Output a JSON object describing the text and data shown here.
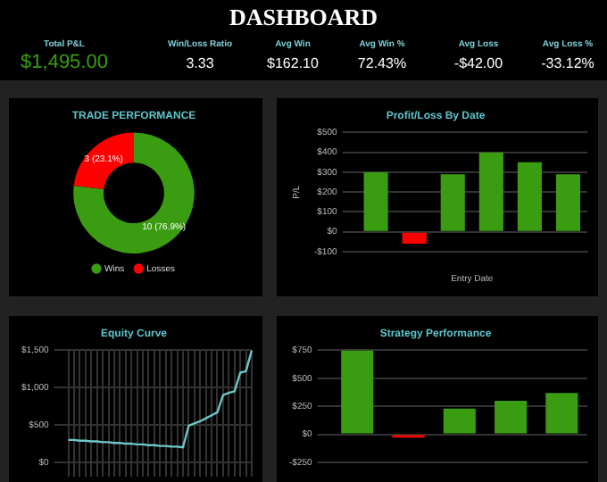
{
  "chart_data": [
    {
      "type": "other",
      "title": "DASHBOARD",
      "annotations": [
        "Total P&L",
        "$1,495.00",
        "Win/Loss Ratio",
        "3.33",
        "Avg Win",
        "$162.10",
        "Avg Win %",
        "72.43%",
        "Avg Loss",
        "-$42.00",
        "Avg Loss %",
        "-33.12%"
      ]
    },
    {
      "type": "donut",
      "title": "TRADE PERFORMANCE",
      "categories": [
        "Wins",
        "Losses"
      ],
      "values": [
        10,
        3
      ],
      "colors": [
        "#3a9c10",
        "#ff0000"
      ],
      "value_labels": [
        "10 (76.9%)",
        "3 (23.1%)"
      ],
      "legend": "bottom"
    },
    {
      "type": "bar",
      "title": "Profit/Loss By Date",
      "xlabel": "Entry Date",
      "ylabel": "P/L",
      "categories": [
        null,
        null,
        null,
        null,
        null,
        null
      ],
      "values": [
        300,
        -60,
        290,
        400,
        350,
        290
      ],
      "colors": [
        "#3a9c10",
        "#ff0000",
        "#3a9c10",
        "#3a9c10",
        "#3a9c10",
        "#3a9c10"
      ],
      "ylim": [
        -100,
        500
      ],
      "yticks": [
        {
          "value": -100,
          "label": "-$100"
        },
        {
          "value": 0,
          "label": "$0"
        },
        {
          "value": 100,
          "label": "$100"
        },
        {
          "value": 200,
          "label": "$200"
        },
        {
          "value": 300,
          "label": "$300"
        },
        {
          "value": 400,
          "label": "$400"
        },
        {
          "value": 500,
          "label": "$500"
        }
      ],
      "grid": "y",
      "tick_labels": "y"
    },
    {
      "type": "line",
      "title": "Equity Curve",
      "categories": [
        null,
        null,
        null,
        null,
        null,
        null,
        null,
        null,
        null,
        null,
        null,
        null,
        null,
        null,
        null,
        null,
        null,
        null,
        null,
        null,
        null,
        null,
        null,
        null,
        null,
        null,
        null,
        null,
        null,
        null,
        null,
        null,
        null
      ],
      "series": [
        {
          "color": "#6fc7c9",
          "values": [
            300,
            300,
            290,
            290,
            280,
            280,
            270,
            270,
            260,
            260,
            250,
            250,
            240,
            240,
            230,
            230,
            220,
            220,
            210,
            210,
            200,
            490,
            520,
            550,
            590,
            630,
            670,
            900,
            930,
            950,
            1200,
            1220,
            1500
          ]
        }
      ],
      "ylim": [
        0,
        1500
      ],
      "yticks": [
        {
          "value": 0,
          "label": "$0"
        },
        {
          "value": 500,
          "label": "$500"
        },
        {
          "value": 1000,
          "label": "$1,000"
        },
        {
          "value": 1500,
          "label": "$1,500"
        }
      ],
      "grid": true,
      "tick_labels": "y",
      "marker": "none"
    },
    {
      "type": "bar",
      "title": "Strategy Performance",
      "categories": [
        null,
        null,
        null,
        null,
        null
      ],
      "values": [
        750,
        -30,
        230,
        300,
        370
      ],
      "colors": [
        "#3a9c10",
        "#ff0000",
        "#3a9c10",
        "#3a9c10",
        "#3a9c10"
      ],
      "ylim": [
        -250,
        750
      ],
      "yticks": [
        {
          "value": -250,
          "label": "-$250"
        },
        {
          "value": 0,
          "label": "$0"
        },
        {
          "value": 250,
          "label": "$250"
        },
        {
          "value": 500,
          "label": "$500"
        },
        {
          "value": 750,
          "label": "$750"
        }
      ],
      "grid": "y",
      "tick_labels": "y"
    }
  ]
}
